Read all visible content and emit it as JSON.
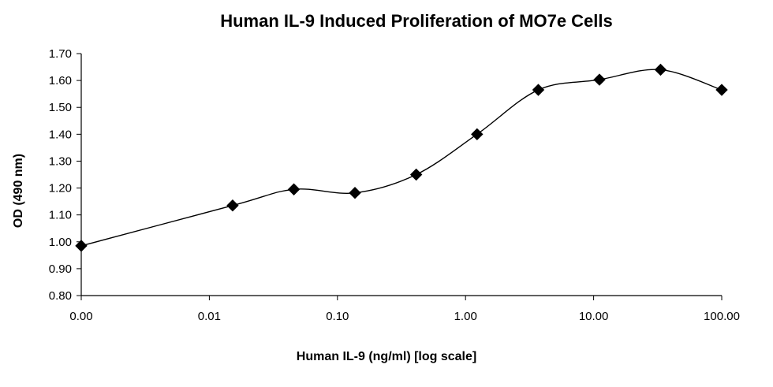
{
  "chart_data": {
    "type": "line",
    "title": "Human IL-9 Induced Proliferation of MO7e Cells",
    "xlabel": "Human IL-9 (ng/ml) [log scale]",
    "ylabel": "OD (490 nm)",
    "x_scale": "log",
    "x_ticks": [
      {
        "label": "0.00",
        "value": 0.001
      },
      {
        "label": "0.01",
        "value": 0.01
      },
      {
        "label": "0.10",
        "value": 0.1
      },
      {
        "label": "1.00",
        "value": 1
      },
      {
        "label": "10.00",
        "value": 10
      },
      {
        "label": "100.00",
        "value": 100
      }
    ],
    "xlim": [
      0.001,
      100
    ],
    "y_ticks": [
      "0.80",
      "0.90",
      "1.00",
      "1.10",
      "1.20",
      "1.30",
      "1.40",
      "1.50",
      "1.60",
      "1.70"
    ],
    "ylim": [
      0.8,
      1.7
    ],
    "grid": false,
    "legend": "none",
    "marker": "diamond",
    "line_style": "smooth",
    "series": [
      {
        "color": "#000000",
        "x": [
          0.001,
          0.0152,
          0.0457,
          0.137,
          0.412,
          1.23,
          3.7,
          11.1,
          33.3,
          100
        ],
        "y": [
          0.985,
          1.135,
          1.195,
          1.182,
          1.25,
          1.4,
          1.565,
          1.603,
          1.64,
          1.565
        ]
      }
    ]
  }
}
